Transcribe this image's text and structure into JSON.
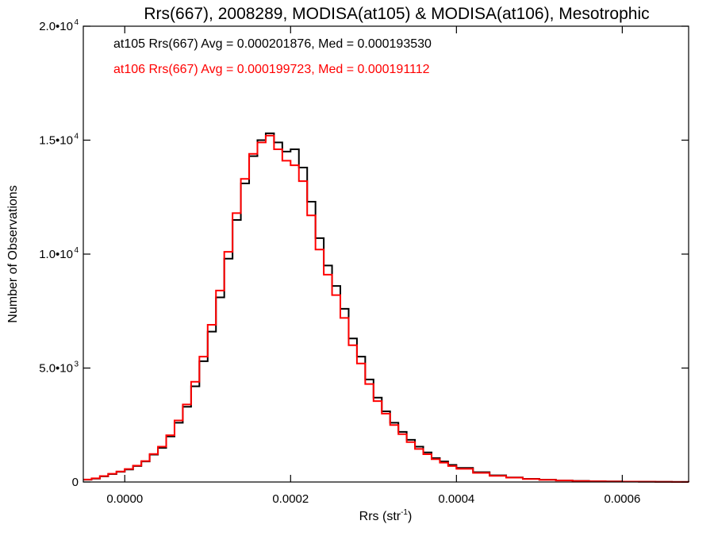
{
  "chart_data": {
    "type": "line",
    "title": "Rrs(667), 2008289, MODISA(at105) & MODISA(at106), Mesotrophic",
    "xlabel": "Rrs (str",
    "xlabel_exp": "-1",
    "xlabel_close": ")",
    "ylabel": "Number of Observations",
    "xlim": [
      -5e-05,
      0.00068
    ],
    "ylim": [
      0,
      20000
    ],
    "grid": false,
    "x_ticks": [
      {
        "value": 0.0,
        "label": "0.0000"
      },
      {
        "value": 0.0002,
        "label": "0.0002"
      },
      {
        "value": 0.0004,
        "label": "0.0004"
      },
      {
        "value": 0.0006,
        "label": "0.0006"
      }
    ],
    "y_ticks": [
      {
        "value": 0,
        "label": "0",
        "exp": ""
      },
      {
        "value": 5000,
        "label": "5.0•10",
        "exp": "3"
      },
      {
        "value": 10000,
        "label": "1.0•10",
        "exp": "4"
      },
      {
        "value": 15000,
        "label": "1.5•10",
        "exp": "4"
      },
      {
        "value": 20000,
        "label": "2.0•10",
        "exp": "4"
      }
    ],
    "annotations": [
      {
        "text": "at105 Rrs(667) Avg = 0.000201876, Med = 0.000193530",
        "color": "#000000"
      },
      {
        "text": "at106 Rrs(667) Avg = 0.000199723, Med = 0.000191112",
        "color": "#ff0000"
      }
    ],
    "series": [
      {
        "color": "#000000",
        "x": [
          -5e-05,
          -4e-05,
          -3e-05,
          -2e-05,
          -1e-05,
          0.0,
          1e-05,
          2e-05,
          3e-05,
          4e-05,
          5e-05,
          6e-05,
          7e-05,
          8e-05,
          9e-05,
          0.0001,
          0.00011,
          0.00012,
          0.00013,
          0.00014,
          0.00015,
          0.00016,
          0.00017,
          0.00018,
          0.00019,
          0.0002,
          0.00021,
          0.00022,
          0.00023,
          0.00024,
          0.00025,
          0.00026,
          0.00027,
          0.00028,
          0.00029,
          0.0003,
          0.00031,
          0.00032,
          0.00033,
          0.00034,
          0.00035,
          0.00036,
          0.00037,
          0.00038,
          0.00039,
          0.0004,
          0.00042,
          0.00044,
          0.00046,
          0.00048,
          0.0005,
          0.00052,
          0.00054,
          0.00056,
          0.00058,
          0.0006,
          0.00062,
          0.00064,
          0.00066,
          0.00068
        ],
        "y": [
          100,
          150,
          250,
          350,
          450,
          550,
          700,
          900,
          1200,
          1500,
          2000,
          2600,
          3300,
          4200,
          5300,
          6600,
          8100,
          9800,
          11500,
          13100,
          14300,
          15000,
          15300,
          14900,
          14500,
          14600,
          13800,
          12300,
          10700,
          9500,
          8600,
          7600,
          6300,
          5500,
          4500,
          3700,
          3100,
          2600,
          2200,
          1850,
          1550,
          1300,
          1050,
          900,
          750,
          620,
          430,
          290,
          200,
          140,
          100,
          70,
          50,
          35,
          25,
          18,
          12,
          8,
          5,
          3
        ]
      },
      {
        "color": "#ff0000",
        "x": [
          -5e-05,
          -4e-05,
          -3e-05,
          -2e-05,
          -1e-05,
          0.0,
          1e-05,
          2e-05,
          3e-05,
          4e-05,
          5e-05,
          6e-05,
          7e-05,
          8e-05,
          9e-05,
          0.0001,
          0.00011,
          0.00012,
          0.00013,
          0.00014,
          0.00015,
          0.00016,
          0.00017,
          0.00018,
          0.00019,
          0.0002,
          0.00021,
          0.00022,
          0.00023,
          0.00024,
          0.00025,
          0.00026,
          0.00027,
          0.00028,
          0.00029,
          0.0003,
          0.00031,
          0.00032,
          0.00033,
          0.00034,
          0.00035,
          0.00036,
          0.00037,
          0.00038,
          0.00039,
          0.0004,
          0.00042,
          0.00044,
          0.00046,
          0.00048,
          0.0005,
          0.00052,
          0.00054,
          0.00056,
          0.00058,
          0.0006,
          0.00062,
          0.00064,
          0.00066,
          0.00068
        ],
        "y": [
          110,
          160,
          260,
          360,
          460,
          570,
          720,
          920,
          1230,
          1550,
          2050,
          2700,
          3400,
          4400,
          5500,
          6900,
          8400,
          10100,
          11800,
          13300,
          14400,
          14900,
          15200,
          14600,
          14100,
          13900,
          13200,
          11700,
          10200,
          9100,
          8200,
          7200,
          6000,
          5200,
          4300,
          3550,
          3000,
          2500,
          2100,
          1750,
          1450,
          1220,
          1000,
          850,
          700,
          580,
          400,
          270,
          190,
          130,
          95,
          65,
          45,
          32,
          22,
          16,
          11,
          7,
          4,
          3
        ]
      }
    ]
  }
}
